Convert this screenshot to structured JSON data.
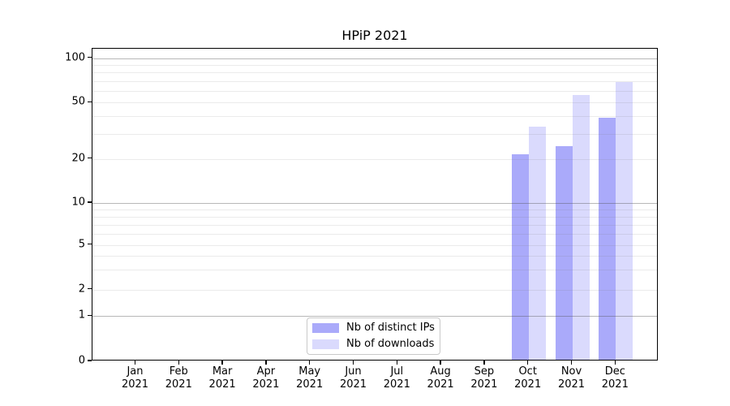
{
  "title": "HPiP 2021",
  "legend": {
    "items": [
      {
        "label": "Nb of distinct IPs",
        "color": "#aaaaf7",
        "fill": "rgba(85,85,245,0.50)"
      },
      {
        "label": "Nb of downloads",
        "color": "#dadaf8",
        "fill": "rgba(85,85,245,0.22)"
      }
    ]
  },
  "y_axis": {
    "ticks": [
      {
        "label": "100",
        "value": 100
      },
      {
        "label": "50",
        "value": 50
      },
      {
        "label": "20",
        "value": 20
      },
      {
        "label": "10",
        "value": 10
      },
      {
        "label": "5",
        "value": 5
      },
      {
        "label": "2",
        "value": 2
      },
      {
        "label": "1",
        "value": 1
      },
      {
        "label": "0",
        "value": 0
      }
    ]
  },
  "x_axis": {
    "months": [
      "Jan",
      "Feb",
      "Mar",
      "Apr",
      "May",
      "Jun",
      "Jul",
      "Aug",
      "Sep",
      "Oct",
      "Nov",
      "Dec"
    ],
    "year": "2021"
  },
  "chart_data": {
    "type": "bar",
    "title": "HPiP 2021",
    "categories": [
      "Jan 2021",
      "Feb 2021",
      "Mar 2021",
      "Apr 2021",
      "May 2021",
      "Jun 2021",
      "Jul 2021",
      "Aug 2021",
      "Sep 2021",
      "Oct 2021",
      "Nov 2021",
      "Dec 2021"
    ],
    "series": [
      {
        "name": "Nb of distinct IPs",
        "color": "#aaaaf7",
        "fill": "rgba(85,85,245,0.50)",
        "values": [
          0,
          0,
          0,
          0,
          0,
          0,
          0,
          0,
          0,
          21,
          24,
          38
        ]
      },
      {
        "name": "Nb of downloads",
        "color": "#dadaf8",
        "fill": "rgba(85,85,245,0.22)",
        "values": [
          0,
          0,
          0,
          0,
          0,
          0,
          0,
          0,
          0,
          33,
          55,
          67
        ]
      }
    ],
    "xlabel": "",
    "ylabel": "",
    "yscale": "log-above-1-linear-below-1",
    "y_ticks": [
      0,
      1,
      2,
      5,
      10,
      20,
      50,
      100
    ],
    "ylim": [
      0,
      115
    ],
    "grid": "horizontal, minor at 2-9 and 20-90, major at 1/10/100, drawn over bars",
    "legend_position": "lower center inside plot",
    "grid_minor_values": [
      2,
      3,
      4,
      5,
      6,
      7,
      8,
      9,
      20,
      30,
      40,
      50,
      60,
      70,
      80,
      90
    ],
    "grid_major_values": [
      1,
      10,
      100
    ]
  }
}
